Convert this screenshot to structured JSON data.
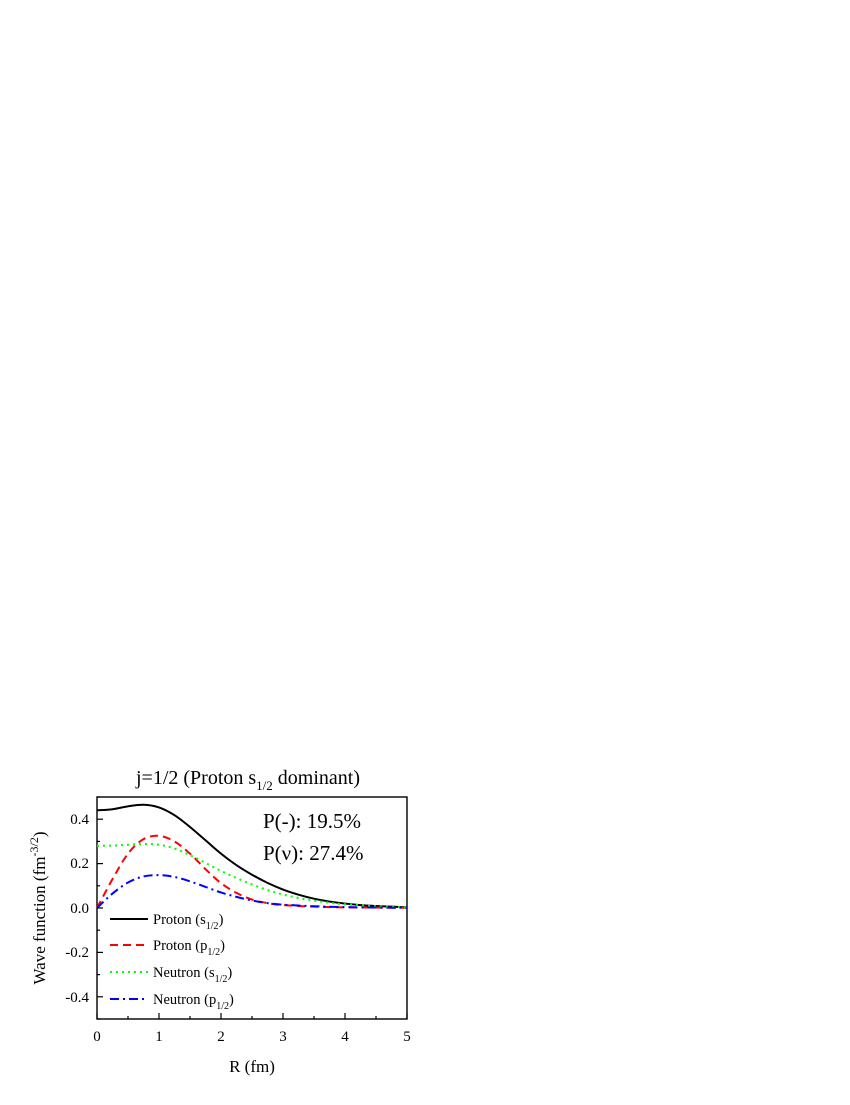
{
  "chart_data": {
    "type": "line",
    "title": {
      "prefix": "j=1/2 (Proton s",
      "sub": "1/2",
      "suffix": " dominant)"
    },
    "xlabel": "R (fm)",
    "ylabel": {
      "main": "Wave function (fm",
      "sup": "-3/2",
      "end": ")"
    },
    "xlim": [
      0,
      5
    ],
    "ylim": [
      -0.5,
      0.5
    ],
    "x_ticks": [
      "0",
      "1",
      "2",
      "3",
      "4",
      "5"
    ],
    "y_ticks": [
      "0.4",
      "0.2",
      "0.0",
      "-0.2",
      "-0.4"
    ],
    "grid": false,
    "legend_position": "bottom-left",
    "annotations": [
      "P(-): 19.5%",
      "P(ν): 27.4%"
    ],
    "series": [
      {
        "key": "proton_s",
        "legend_main": "Proton (s",
        "legend_sub": "1/2",
        "legend_end": ")",
        "color": "#000000",
        "style": "solid",
        "x": [
          0,
          0.25,
          0.5,
          0.75,
          1.0,
          1.25,
          1.5,
          1.75,
          2.0,
          2.25,
          2.5,
          2.75,
          3.0,
          3.25,
          3.5,
          3.75,
          4.0,
          4.25,
          4.5,
          4.75,
          5.0
        ],
        "y": [
          0.44,
          0.445,
          0.458,
          0.465,
          0.453,
          0.418,
          0.365,
          0.305,
          0.245,
          0.193,
          0.15,
          0.113,
          0.083,
          0.06,
          0.042,
          0.029,
          0.02,
          0.013,
          0.009,
          0.006,
          0.003
        ]
      },
      {
        "key": "proton_p",
        "legend_main": "Proton (p",
        "legend_sub": "1/2",
        "legend_end": ")",
        "color": "#ff0000",
        "style": "dashed",
        "x": [
          0,
          0.25,
          0.5,
          0.75,
          1.0,
          1.25,
          1.5,
          1.75,
          2.0,
          2.25,
          2.5,
          2.75,
          3.0,
          3.5,
          4.0,
          4.5,
          5.0
        ],
        "y": [
          0.0,
          0.13,
          0.245,
          0.31,
          0.325,
          0.3,
          0.245,
          0.175,
          0.112,
          0.068,
          0.038,
          0.022,
          0.013,
          0.006,
          0.003,
          0.002,
          0.001
        ]
      },
      {
        "key": "neutron_s",
        "legend_main": "Neutron (s",
        "legend_sub": "1/2",
        "legend_end": ")",
        "color": "#00ff00",
        "style": "dotted",
        "x": [
          0,
          0.25,
          0.5,
          0.75,
          1.0,
          1.25,
          1.5,
          1.75,
          2.0,
          2.25,
          2.5,
          2.75,
          3.0,
          3.25,
          3.5,
          3.75,
          4.0,
          4.5,
          5.0
        ],
        "y": [
          0.28,
          0.281,
          0.285,
          0.288,
          0.285,
          0.268,
          0.238,
          0.203,
          0.167,
          0.135,
          0.106,
          0.081,
          0.061,
          0.045,
          0.033,
          0.024,
          0.017,
          0.008,
          0.003
        ]
      },
      {
        "key": "neutron_p",
        "legend_main": "Neutron (p",
        "legend_sub": "1/2",
        "legend_end": ")",
        "color": "#0000ff",
        "style": "dashdot",
        "x": [
          0,
          0.25,
          0.5,
          0.75,
          1.0,
          1.25,
          1.5,
          1.75,
          2.0,
          2.25,
          2.5,
          2.75,
          3.0,
          3.5,
          4.0,
          4.5,
          5.0
        ],
        "y": [
          0.0,
          0.065,
          0.115,
          0.142,
          0.148,
          0.14,
          0.12,
          0.095,
          0.07,
          0.05,
          0.034,
          0.022,
          0.015,
          0.008,
          0.004,
          0.002,
          0.001
        ]
      }
    ]
  }
}
